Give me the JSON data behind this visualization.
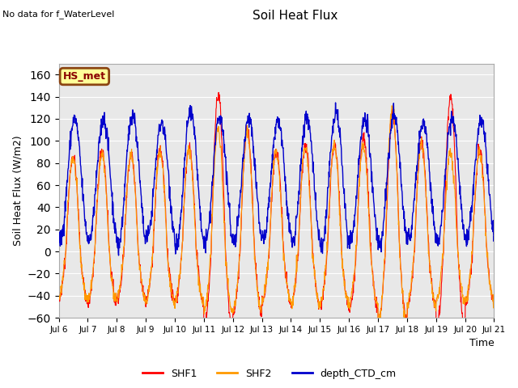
{
  "title": "Soil Heat Flux",
  "ylabel": "Soil Heat Flux (W/m2)",
  "xlabel": "Time",
  "top_left_text": "No data for f_WaterLevel",
  "legend_label": "HS_met",
  "ylim": [
    -60,
    170
  ],
  "yticks": [
    -60,
    -40,
    -20,
    0,
    20,
    40,
    60,
    80,
    100,
    120,
    140,
    160
  ],
  "xtick_labels": [
    "Jul 6",
    "Jul 7",
    "Jul 8",
    "Jul 9",
    "Jul 10",
    "Jul 11",
    "Jul 12",
    "Jul 13",
    "Jul 14",
    "Jul 15",
    "Jul 16",
    "Jul 17",
    "Jul 18",
    "Jul 19",
    "Jul 20",
    "Jul 21"
  ],
  "series_colors": {
    "SHF1": "#ff0000",
    "SHF2": "#ff9900",
    "depth_CTD_cm": "#0000cc"
  },
  "plot_bg_color": "#e8e8e8",
  "legend_box_color": "#ffff99",
  "legend_box_edge": "#8B4513",
  "num_days": 15,
  "points_per_day": 96,
  "shf_amplitudes": [
    87,
    92,
    88,
    91,
    94,
    143,
    110,
    91,
    95,
    97,
    103,
    125,
    100,
    140,
    92
  ],
  "shf2_amplitudes": [
    85,
    89,
    86,
    89,
    92,
    110,
    108,
    89,
    93,
    95,
    95,
    130,
    98,
    90,
    90
  ],
  "blue_amplitudes": [
    55,
    55,
    60,
    52,
    62,
    58,
    56,
    54,
    58,
    62,
    55,
    58,
    52,
    56,
    54
  ]
}
